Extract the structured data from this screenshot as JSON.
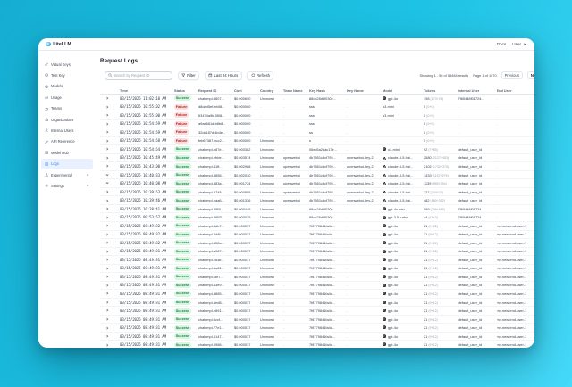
{
  "navbar": {
    "brand": "LiteLLM",
    "docs_label": "Docs",
    "user_label": "User"
  },
  "sidebar": {
    "items": [
      {
        "label": "Virtual Keys",
        "icon": "key-icon",
        "selected": false,
        "submenu": false
      },
      {
        "label": "Test Key",
        "icon": "test-key-icon",
        "selected": false,
        "submenu": false
      },
      {
        "label": "Models",
        "icon": "models-icon",
        "selected": false,
        "submenu": false
      },
      {
        "label": "Usage",
        "icon": "usage-chart-icon",
        "selected": false,
        "submenu": false
      },
      {
        "label": "Teams",
        "icon": "teams-icon",
        "selected": false,
        "submenu": false
      },
      {
        "label": "Organizations",
        "icon": "organizations-icon",
        "selected": false,
        "submenu": false
      },
      {
        "label": "Internal Users",
        "icon": "internal-users-icon",
        "selected": false,
        "submenu": false
      },
      {
        "label": "API Reference",
        "icon": "api-reference-icon",
        "selected": false,
        "submenu": false
      },
      {
        "label": "Model Hub",
        "icon": "model-hub-icon",
        "selected": false,
        "submenu": false
      },
      {
        "label": "Logs",
        "icon": "logs-icon",
        "selected": true,
        "submenu": false
      },
      {
        "label": "Experimental",
        "icon": "experimental-icon",
        "selected": false,
        "submenu": true
      },
      {
        "label": "Settings",
        "icon": "settings-icon",
        "selected": false,
        "submenu": true
      }
    ]
  },
  "page": {
    "title": "Request Logs",
    "search_placeholder": "Search by Request ID",
    "filter_label": "Filter",
    "time_range_label": "Last 24 Hours",
    "refresh_label": "Refresh",
    "showing_text": "Showing 1 - 50 of 53484 results",
    "page_text": "Page 1 of 1070",
    "previous_label": "Previous",
    "next_label": "Next"
  },
  "table": {
    "columns": [
      "",
      "Time",
      "Status",
      "Request ID",
      "Cost",
      "Country",
      "Team Name",
      "Key Hash",
      "Key Name",
      "Model",
      "Tokens",
      "Internal User",
      "End User"
    ],
    "rows": [
      {
        "time": "03/15/2025 11:02:10 AM",
        "status": "Success",
        "request_id": "chatcmpl-8807...",
        "cost": "$0.000690",
        "country": "Unknown",
        "team": "-",
        "key_hash": "88dc28d8f030c...",
        "key_name": "-",
        "model": "gpt-4o",
        "model_icon": "openai-icon",
        "tokens": "198",
        "tokens_detail": "(173+25)",
        "internal_user": "7f65448f08724...",
        "end_user": "-",
        "expanded": false
      },
      {
        "time": "03/15/2025 10:55:02 AM",
        "status": "Failure",
        "request_id": "d8dad5ef-eb08...",
        "cost": "$0.000000",
        "country": "-",
        "team": "-",
        "key_hash": "sss",
        "key_name": "-",
        "model": "o3-mini",
        "model_icon": "",
        "tokens": "0",
        "tokens_detail": "(0+0)",
        "internal_user": "-",
        "end_user": "-",
        "expanded": false
      },
      {
        "time": "03/15/2025 10:55:00 AM",
        "status": "Failure",
        "request_id": "63474a9b-3f08...",
        "cost": "$0.000000",
        "country": "-",
        "team": "-",
        "key_hash": "sss",
        "key_name": "-",
        "model": "o3-mini",
        "model_icon": "",
        "tokens": "0",
        "tokens_detail": "(0+0)",
        "internal_user": "-",
        "end_user": "-",
        "expanded": false
      },
      {
        "time": "03/15/2025 10:54:59 AM",
        "status": "Failure",
        "request_id": "a9ae681d-b8b8...",
        "cost": "$0.000000",
        "country": "-",
        "team": "-",
        "key_hash": "sss",
        "key_name": "-",
        "model": "",
        "model_icon": "",
        "tokens": "0",
        "tokens_detail": "(0+0)",
        "internal_user": "-",
        "end_user": "-",
        "expanded": false
      },
      {
        "time": "03/15/2025 10:54:59 AM",
        "status": "Failure",
        "request_id": "32dc187d-4b4e...",
        "cost": "$0.000000",
        "country": "-",
        "team": "-",
        "key_hash": "ss",
        "key_name": "-",
        "model": "",
        "model_icon": "",
        "tokens": "0",
        "tokens_detail": "(0+0)",
        "internal_user": "-",
        "end_user": "-",
        "expanded": false
      },
      {
        "time": "03/15/2025 10:54:58 AM",
        "status": "Failure",
        "request_id": "feb67387-bcc2...",
        "cost": "$0.000000",
        "country": "Unknown",
        "team": "-",
        "key_hash": "s",
        "key_name": "-",
        "model": "",
        "model_icon": "",
        "tokens": "0",
        "tokens_detail": "(0+0)",
        "internal_user": "-",
        "end_user": "-",
        "expanded": false
      },
      {
        "time": "03/15/2025 10:54:54 AM",
        "status": "Success",
        "request_id": "chatcmpl-b87e...",
        "cost": "$0.000382",
        "country": "Unknown",
        "team": "-",
        "key_hash": "06ec5a2eac17e...",
        "key_name": "-",
        "model": "o3-mini",
        "model_icon": "openai-icon",
        "tokens": "92",
        "tokens_detail": "(7+85)",
        "internal_user": "default_user_id",
        "end_user": "-",
        "expanded": false
      },
      {
        "time": "03/15/2025 10:45:49 AM",
        "status": "Success",
        "request_id": "chatcmpl-ebbe...",
        "cost": "$0.003574",
        "country": "Unknown",
        "team": "openwebui",
        "key_hash": "4b7651c6cf795...",
        "key_name": "openwebui-key-2",
        "model": "claude-3-5-hai...",
        "model_icon": "anthropic-icon",
        "tokens": "2580",
        "tokens_detail": "(2127+453)",
        "internal_user": "default_user_id",
        "end_user": "-",
        "expanded": false
      },
      {
        "time": "03/15/2025 10:43:00 AM",
        "status": "Success",
        "request_id": "chatcmpl-41ff...",
        "cost": "$0.002988",
        "country": "Unknown",
        "team": "openwebui",
        "key_hash": "4b7651c6cf795...",
        "key_name": "openwebui-key-2",
        "model": "claude-3-5-hai...",
        "model_icon": "anthropic-icon",
        "tokens": "2102",
        "tokens_detail": "(1732+370)",
        "internal_user": "default_user_id",
        "end_user": "-",
        "expanded": false
      },
      {
        "time": "03/15/2025 10:40:33 AM",
        "status": "Success",
        "request_id": "chatcmpl-5858...",
        "cost": "$0.002030",
        "country": "Unknown",
        "team": "openwebui",
        "key_hash": "4b7651c6cf795...",
        "key_name": "openwebui-key-2",
        "model": "claude-3-5-hai...",
        "model_icon": "anthropic-icon",
        "tokens": "1433",
        "tokens_detail": "(1157+276)",
        "internal_user": "default_user_id",
        "end_user": "-",
        "expanded": true
      },
      {
        "time": "03/15/2025 10:40:08 AM",
        "status": "Success",
        "request_id": "chatcmpl-883a...",
        "cost": "$0.001724",
        "country": "Unknown",
        "team": "openwebui",
        "key_hash": "4b7651c6cf795...",
        "key_name": "openwebui-key-2",
        "model": "claude-3-5-hai...",
        "model_icon": "anthropic-icon",
        "tokens": "1139",
        "tokens_detail": "(885+254)",
        "internal_user": "default_user_id",
        "end_user": "-",
        "expanded": true
      },
      {
        "time": "03/15/2025 10:39:53 AM",
        "status": "Success",
        "request_id": "chatcmpl-5748...",
        "cost": "$0.000855",
        "country": "Unknown",
        "team": "openwebui",
        "key_hash": "4b7651c6cf795...",
        "key_name": "openwebui-key-2",
        "model": "claude-3-5-hai...",
        "model_icon": "anthropic-icon",
        "tokens": "727",
        "tokens_detail": "(704+23)",
        "internal_user": "default_user_id",
        "end_user": "-",
        "expanded": false
      },
      {
        "time": "03/15/2025 10:39:46 AM",
        "status": "Success",
        "request_id": "chatcmpl-eaa6...",
        "cost": "$0.001336",
        "country": "Unknown",
        "team": "openwebui",
        "key_hash": "4b7651c6cf795...",
        "key_name": "openwebui-key-2",
        "model": "claude-3-5-hai...",
        "model_icon": "anthropic-icon",
        "tokens": "482",
        "tokens_detail": "(180+302)",
        "internal_user": "default_user_id",
        "end_user": "-",
        "expanded": false
      },
      {
        "time": "03/15/2025 10:38:41 AM",
        "status": "Success",
        "request_id": "chatcmpl-88Pl...",
        "cost": "$0.000445",
        "country": "Unknown",
        "team": "-",
        "key_hash": "88dc28d8f030c...",
        "key_name": "-",
        "model": "gpt-4o-mini",
        "model_icon": "openai-icon",
        "tokens": "899",
        "tokens_detail": "(209+690)",
        "internal_user": "7f65448f08724...",
        "end_user": "-",
        "expanded": false
      },
      {
        "time": "03/15/2025 09:53:57 AM",
        "status": "Success",
        "request_id": "chatcmpl-88P3...",
        "cost": "$0.000025",
        "country": "Unknown",
        "team": "-",
        "key_hash": "88dc28d8f030c...",
        "key_name": "-",
        "model": "gpt-3.5-turbo",
        "model_icon": "openai-icon",
        "tokens": "44",
        "tokens_detail": "(41+3)",
        "internal_user": "7f65448f08724...",
        "end_user": "-",
        "expanded": false
      },
      {
        "time": "03/15/2025 08:49:32 AM",
        "status": "Success",
        "request_id": "chatcmpl-6db7...",
        "cost": "$0.000037",
        "country": "Unknown",
        "team": "-",
        "key_hash": "7f8779841fa4d...",
        "key_name": "-",
        "model": "gpt-4o",
        "model_icon": "openai-icon",
        "tokens": "21",
        "tokens_detail": "(9+12)",
        "internal_user": "default_user_id",
        "end_user": "my-new-end-user-1",
        "expanded": false
      },
      {
        "time": "03/15/2025 08:49:32 AM",
        "status": "Success",
        "request_id": "chatcmpl-2d8f...",
        "cost": "$0.000037",
        "country": "Unknown",
        "team": "-",
        "key_hash": "7f8779841fa4d...",
        "key_name": "-",
        "model": "gpt-4o",
        "model_icon": "openai-icon",
        "tokens": "21",
        "tokens_detail": "(9+12)",
        "internal_user": "default_user_id",
        "end_user": "my-new-end-user-1",
        "expanded": false
      },
      {
        "time": "03/15/2025 08:49:32 AM",
        "status": "Success",
        "request_id": "chatcmpl-d52a...",
        "cost": "$0.000037",
        "country": "Unknown",
        "team": "-",
        "key_hash": "7f8779841fa4d...",
        "key_name": "-",
        "model": "gpt-4o",
        "model_icon": "openai-icon",
        "tokens": "21",
        "tokens_detail": "(9+12)",
        "internal_user": "default_user_id",
        "end_user": "my-new-end-user-1",
        "expanded": false
      },
      {
        "time": "03/15/2025 08:49:31 AM",
        "status": "Success",
        "request_id": "chatcmpl-a087...",
        "cost": "$0.000037",
        "country": "Unknown",
        "team": "-",
        "key_hash": "7f8779841fa4d...",
        "key_name": "-",
        "model": "gpt-4o",
        "model_icon": "openai-icon",
        "tokens": "21",
        "tokens_detail": "(9+12)",
        "internal_user": "default_user_id",
        "end_user": "my-new-end-user-1",
        "expanded": false
      },
      {
        "time": "03/15/2025 08:49:31 AM",
        "status": "Success",
        "request_id": "chatcmpl-cd3b...",
        "cost": "$0.000037",
        "country": "Unknown",
        "team": "-",
        "key_hash": "7f8779841fa4d...",
        "key_name": "-",
        "model": "gpt-4o",
        "model_icon": "openai-icon",
        "tokens": "21",
        "tokens_detail": "(9+12)",
        "internal_user": "default_user_id",
        "end_user": "my-new-end-user-1",
        "expanded": false
      },
      {
        "time": "03/15/2025 08:49:31 AM",
        "status": "Success",
        "request_id": "chatcmpl-da61...",
        "cost": "$0.000037",
        "country": "Unknown",
        "team": "-",
        "key_hash": "7f8779841fa4d...",
        "key_name": "-",
        "model": "gpt-4o",
        "model_icon": "openai-icon",
        "tokens": "21",
        "tokens_detail": "(9+12)",
        "internal_user": "default_user_id",
        "end_user": "my-new-end-user-1",
        "expanded": false
      },
      {
        "time": "03/15/2025 08:49:31 AM",
        "status": "Success",
        "request_id": "chatcmpl-f5e7...",
        "cost": "$0.000037",
        "country": "Unknown",
        "team": "-",
        "key_hash": "7f8779841fa4d...",
        "key_name": "-",
        "model": "gpt-4o",
        "model_icon": "openai-icon",
        "tokens": "21",
        "tokens_detail": "(9+12)",
        "internal_user": "default_user_id",
        "end_user": "my-new-end-user-1",
        "expanded": false
      },
      {
        "time": "03/15/2025 08:49:31 AM",
        "status": "Success",
        "request_id": "chatcmpl-43e9...",
        "cost": "$0.000037",
        "country": "Unknown",
        "team": "-",
        "key_hash": "7f8779841fa4d...",
        "key_name": "-",
        "model": "gpt-4o",
        "model_icon": "openai-icon",
        "tokens": "21",
        "tokens_detail": "(9+12)",
        "internal_user": "default_user_id",
        "end_user": "my-new-end-user-1",
        "expanded": false
      },
      {
        "time": "03/15/2025 08:49:31 AM",
        "status": "Success",
        "request_id": "chatcmpl-d865...",
        "cost": "$0.000037",
        "country": "Unknown",
        "team": "-",
        "key_hash": "7f8779841fa4d...",
        "key_name": "-",
        "model": "gpt-4o",
        "model_icon": "openai-icon",
        "tokens": "21",
        "tokens_detail": "(9+12)",
        "internal_user": "default_user_id",
        "end_user": "my-new-end-user-1",
        "expanded": false
      },
      {
        "time": "03/15/2025 08:49:31 AM",
        "status": "Success",
        "request_id": "chatcmpl-6ed8...",
        "cost": "$0.000037",
        "country": "Unknown",
        "team": "-",
        "key_hash": "7f8779841fa4d...",
        "key_name": "-",
        "model": "gpt-4o",
        "model_icon": "openai-icon",
        "tokens": "21",
        "tokens_detail": "(9+12)",
        "internal_user": "default_user_id",
        "end_user": "my-new-end-user-1",
        "expanded": false
      },
      {
        "time": "03/15/2025 08:49:31 AM",
        "status": "Success",
        "request_id": "chatcmpl-e891...",
        "cost": "$0.000037",
        "country": "Unknown",
        "team": "-",
        "key_hash": "7f8779841fa4d...",
        "key_name": "-",
        "model": "gpt-4o",
        "model_icon": "openai-icon",
        "tokens": "21",
        "tokens_detail": "(9+12)",
        "internal_user": "default_user_id",
        "end_user": "my-new-end-user-1",
        "expanded": false
      },
      {
        "time": "03/15/2025 08:49:31 AM",
        "status": "Success",
        "request_id": "chatcmpl-6ccf...",
        "cost": "$0.000037",
        "country": "Unknown",
        "team": "-",
        "key_hash": "7f8779841fa4d...",
        "key_name": "-",
        "model": "gpt-4o",
        "model_icon": "openai-icon",
        "tokens": "21",
        "tokens_detail": "(9+12)",
        "internal_user": "default_user_id",
        "end_user": "my-new-end-user-1",
        "expanded": false
      },
      {
        "time": "03/15/2025 08:49:31 AM",
        "status": "Success",
        "request_id": "chatcmpl-77e1...",
        "cost": "$0.000037",
        "country": "Unknown",
        "team": "-",
        "key_hash": "7f8779841fa4d...",
        "key_name": "-",
        "model": "gpt-4o",
        "model_icon": "openai-icon",
        "tokens": "21",
        "tokens_detail": "(9+12)",
        "internal_user": "default_user_id",
        "end_user": "my-new-end-user-1",
        "expanded": false
      },
      {
        "time": "03/15/2025 08:49:31 AM",
        "status": "Success",
        "request_id": "chatcmpl-6147...",
        "cost": "$0.000037",
        "country": "Unknown",
        "team": "-",
        "key_hash": "7f8779841fa4d...",
        "key_name": "-",
        "model": "gpt-4o",
        "model_icon": "openai-icon",
        "tokens": "21",
        "tokens_detail": "(9+12)",
        "internal_user": "default_user_id",
        "end_user": "my-new-end-user-1",
        "expanded": false
      },
      {
        "time": "03/15/2025 08:49:31 AM",
        "status": "Success",
        "request_id": "chatcmpl-0968...",
        "cost": "$0.000037",
        "country": "Unknown",
        "team": "-",
        "key_hash": "7f8779841fa4d...",
        "key_name": "-",
        "model": "gpt-4o",
        "model_icon": "openai-icon",
        "tokens": "21",
        "tokens_detail": "(9+12)",
        "internal_user": "default_user_id",
        "end_user": "my-new-end-user-1",
        "expanded": false
      }
    ]
  }
}
